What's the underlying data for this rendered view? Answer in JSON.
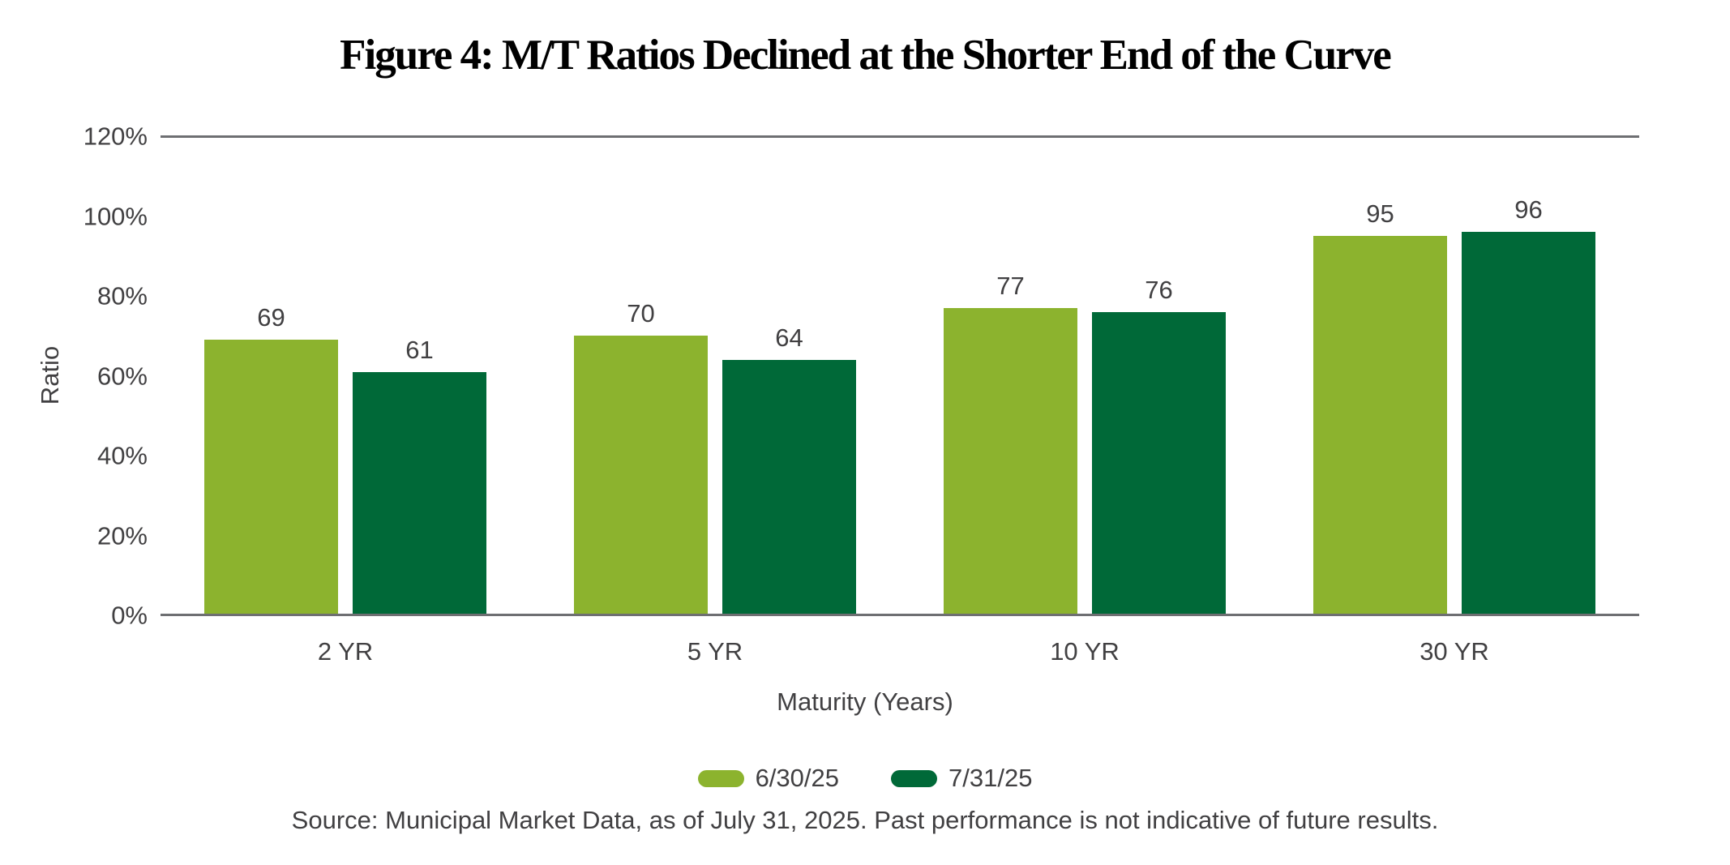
{
  "figure": {
    "title": "Figure 4: M/T Ratios Declined at the Shorter End of the Curve",
    "source": "Source: Municipal Market Data, as of July 31, 2025. Past performance is not indicative of future results."
  },
  "chart_data": {
    "type": "bar",
    "title": "Figure 4: M/T Ratios Declined at the Shorter End of the Curve",
    "categories": [
      "2 YR",
      "5 YR",
      "10 YR",
      "30 YR"
    ],
    "series": [
      {
        "name": "6/30/25",
        "color": "#8CB32E",
        "values": [
          69,
          70,
          77,
          95
        ]
      },
      {
        "name": "7/31/25",
        "color": "#006938",
        "values": [
          61,
          64,
          76,
          96
        ]
      }
    ],
    "xlabel": "Maturity (Years)",
    "ylabel": "Ratio",
    "ylim": [
      0,
      120
    ],
    "y_ticks": [
      "0%",
      "20%",
      "40%",
      "60%",
      "80%",
      "100%",
      "120%"
    ],
    "y_tick_step": 20,
    "grid": "top-line-and-baseline-only",
    "legend_position": "bottom-center",
    "bar_value_labels": [
      69,
      61,
      70,
      64,
      77,
      76,
      95,
      96
    ],
    "colors": {
      "series1_green": "#8CB32E",
      "series2_green": "#006938",
      "axis_line_gray": "#6E6F72",
      "text_gray": "#414042",
      "title_black": "#000000"
    },
    "source": "Source: Municipal Market Data, as of July 31, 2025. Past performance is not indicative of future results."
  }
}
